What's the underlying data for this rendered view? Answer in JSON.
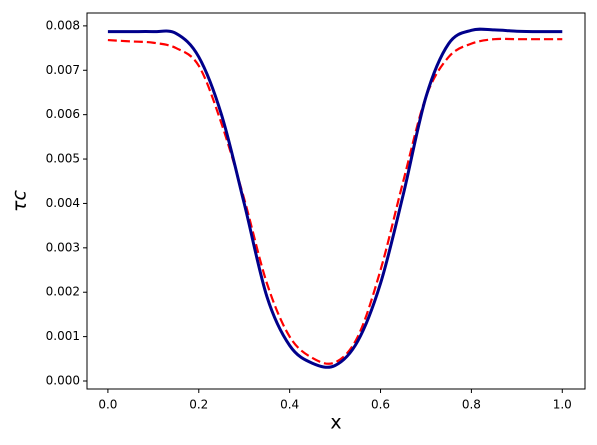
{
  "chart_data": {
    "type": "line",
    "xlabel": "x",
    "ylabel": "τc",
    "x": [
      0,
      0.05,
      0.1,
      0.15,
      0.2,
      0.25,
      0.3,
      0.35,
      0.4,
      0.45,
      0.5,
      0.55,
      0.6,
      0.65,
      0.7,
      0.75,
      0.8,
      0.85,
      0.9,
      0.95,
      1.0
    ],
    "series": [
      {
        "color": "#00008b",
        "dash": false,
        "width": 3,
        "values": [
          0.00787,
          0.00787,
          0.00787,
          0.00783,
          0.0073,
          0.006,
          0.004,
          0.0019,
          0.0008,
          0.0004,
          0.00035,
          0.0009,
          0.0022,
          0.0042,
          0.0064,
          0.0076,
          0.0079,
          0.00791,
          0.00788,
          0.00787,
          0.00787
        ]
      },
      {
        "color": "#ff0000",
        "dash": true,
        "width": 2.2,
        "values": [
          0.00768,
          0.00765,
          0.00762,
          0.0075,
          0.0071,
          0.0058,
          0.0041,
          0.0022,
          0.001,
          0.00052,
          0.00042,
          0.001,
          0.0025,
          0.0045,
          0.0064,
          0.0073,
          0.0076,
          0.0077,
          0.0077,
          0.0077,
          0.0077
        ]
      }
    ],
    "xlim": [
      -0.046,
      1.05
    ],
    "ylim": [
      -0.00018,
      0.00829
    ],
    "xticks": [
      {
        "value": 0,
        "label": "0.0"
      },
      {
        "value": 0.2,
        "label": "0.2"
      },
      {
        "value": 0.4,
        "label": "0.4"
      },
      {
        "value": 0.6,
        "label": "0.6"
      },
      {
        "value": 0.8,
        "label": "0.8"
      },
      {
        "value": 1.0,
        "label": "1.0"
      }
    ],
    "yticks": [
      {
        "value": 0,
        "label": "0.000"
      },
      {
        "value": 0.001,
        "label": "0.001"
      },
      {
        "value": 0.002,
        "label": "0.002"
      },
      {
        "value": 0.003,
        "label": "0.003"
      },
      {
        "value": 0.004,
        "label": "0.004"
      },
      {
        "value": 0.005,
        "label": "0.005"
      },
      {
        "value": 0.006,
        "label": "0.006"
      },
      {
        "value": 0.007,
        "label": "0.007"
      },
      {
        "value": 0.008,
        "label": "0.008"
      }
    ]
  }
}
